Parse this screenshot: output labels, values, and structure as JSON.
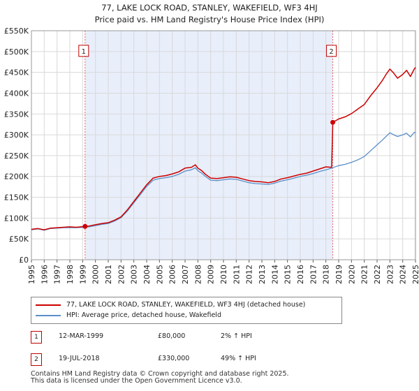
{
  "header": {
    "title_line1": "77, LAKE LOCK ROAD, STANLEY, WAKEFIELD, WF3 4HJ",
    "title_line2": "Price paid vs. HM Land Registry's House Price Index (HPI)"
  },
  "chart_data": {
    "type": "line",
    "title": "77, LAKE LOCK ROAD, STANLEY, WAKEFIELD, WF3 4HJ — Price paid vs. HM Land Registry's House Price Index (HPI)",
    "xlabel": "",
    "ylabel": "",
    "xlim": [
      1995,
      2025
    ],
    "ylim": [
      0,
      550000
    ],
    "y_ticks": [
      0,
      50000,
      100000,
      150000,
      200000,
      250000,
      300000,
      350000,
      400000,
      450000,
      500000,
      550000
    ],
    "y_tick_labels": [
      "£0",
      "£50K",
      "£100K",
      "£150K",
      "£200K",
      "£250K",
      "£300K",
      "£350K",
      "£400K",
      "£450K",
      "£500K",
      "£550K"
    ],
    "x_ticks": [
      1995,
      1996,
      1997,
      1998,
      1999,
      2000,
      2001,
      2002,
      2003,
      2004,
      2005,
      2006,
      2007,
      2008,
      2009,
      2010,
      2011,
      2012,
      2013,
      2014,
      2015,
      2016,
      2017,
      2018,
      2019,
      2020,
      2021,
      2022,
      2023,
      2024,
      2025
    ],
    "x_tick_labels": [
      "1995",
      "1996",
      "1997",
      "1998",
      "1999",
      "2000",
      "2001",
      "2002",
      "2003",
      "2004",
      "2005",
      "2006",
      "2007",
      "2008",
      "2009",
      "2010",
      "2011",
      "2012",
      "2013",
      "2014",
      "2015",
      "2016",
      "2017",
      "2018",
      "2019",
      "2020",
      "2021",
      "2022",
      "2023",
      "2024",
      "2025"
    ],
    "grid": true,
    "shaded_period": [
      1999.19,
      2018.54
    ],
    "series": [
      {
        "name": "77, LAKE LOCK ROAD, STANLEY, WAKEFIELD, WF3 4HJ (detached house)",
        "color": "#cc0000",
        "x": [
          1995,
          1995.5,
          1996,
          1996.5,
          1997,
          1997.5,
          1998,
          1998.5,
          1999.19,
          1999.5,
          2000,
          2000.5,
          2001,
          2001.5,
          2002,
          2002.5,
          2003,
          2003.5,
          2004,
          2004.5,
          2005,
          2005.5,
          2006,
          2006.5,
          2007,
          2007.5,
          2007.8,
          2008,
          2008.3,
          2008.6,
          2009,
          2009.5,
          2010,
          2010.5,
          2011,
          2011.5,
          2012,
          2012.5,
          2013,
          2013.5,
          2014,
          2014.5,
          2015,
          2015.5,
          2016,
          2016.5,
          2017,
          2017.5,
          2018,
          2018.45,
          2018.54,
          2019,
          2019.5,
          2020,
          2020.5,
          2021,
          2021.5,
          2022,
          2022.4,
          2022.7,
          2023,
          2023.3,
          2023.6,
          2024,
          2024.3,
          2024.6,
          2024.9,
          2025
        ],
        "y": [
          73000,
          75000,
          72000,
          76000,
          77000,
          78000,
          79000,
          78000,
          80000,
          81000,
          84000,
          87000,
          89000,
          95000,
          103000,
          120000,
          140000,
          160000,
          180000,
          196000,
          200000,
          202000,
          206000,
          211000,
          220000,
          222000,
          228000,
          220000,
          214000,
          205000,
          196000,
          195000,
          197000,
          199000,
          198000,
          194000,
          190000,
          188000,
          187000,
          185000,
          188000,
          194000,
          197000,
          201000,
          205000,
          208000,
          213000,
          218000,
          223000,
          222000,
          330000,
          338000,
          343000,
          351000,
          362000,
          373000,
          394000,
          413000,
          430000,
          445000,
          458000,
          448000,
          436000,
          445000,
          455000,
          440000,
          458000,
          462000
        ]
      },
      {
        "name": "HPI: Average price, detached house, Wakefield",
        "color": "#5b8fc7",
        "x": [
          1995,
          1995.5,
          1996,
          1996.5,
          1997,
          1997.5,
          1998,
          1998.5,
          1999.19,
          1999.5,
          2000,
          2000.5,
          2001,
          2001.5,
          2002,
          2002.5,
          2003,
          2003.5,
          2004,
          2004.5,
          2005,
          2005.5,
          2006,
          2006.5,
          2007,
          2007.5,
          2007.8,
          2008,
          2008.3,
          2008.6,
          2009,
          2009.5,
          2010,
          2010.5,
          2011,
          2011.5,
          2012,
          2012.5,
          2013,
          2013.5,
          2014,
          2014.5,
          2015,
          2015.5,
          2016,
          2016.5,
          2017,
          2017.5,
          2018,
          2018.54,
          2019,
          2019.5,
          2020,
          2020.5,
          2021,
          2021.5,
          2022,
          2022.4,
          2022.7,
          2023,
          2023.3,
          2023.6,
          2024,
          2024.3,
          2024.6,
          2024.9,
          2025
        ],
        "y": [
          72000,
          74000,
          71000,
          75000,
          76000,
          77000,
          77000,
          77000,
          78000,
          79000,
          82000,
          85000,
          87000,
          93000,
          101000,
          117000,
          137000,
          156000,
          176000,
          191000,
          195000,
          197000,
          200000,
          205000,
          213000,
          216000,
          221000,
          214000,
          208000,
          200000,
          191000,
          190000,
          192000,
          194000,
          193000,
          189000,
          185000,
          183000,
          182000,
          181000,
          184000,
          189000,
          192000,
          196000,
          200000,
          203000,
          207000,
          212000,
          216000,
          221000,
          226000,
          229000,
          234000,
          240000,
          248000,
          262000,
          276000,
          287000,
          296000,
          305000,
          300000,
          296000,
          300000,
          304000,
          295000,
          306000,
          305000
        ]
      }
    ],
    "sales_markers": [
      {
        "label": "1",
        "x": 1999.19,
        "y": 80000
      },
      {
        "label": "2",
        "x": 2018.54,
        "y": 330000
      }
    ]
  },
  "legend": {
    "property_label": "77, LAKE LOCK ROAD, STANLEY, WAKEFIELD, WF3 4HJ (detached house)",
    "property_color": "#cc0000",
    "hpi_label": "HPI: Average price, detached house, Wakefield",
    "hpi_color": "#5b8fc7"
  },
  "sales": [
    {
      "num": "1",
      "date": "12-MAR-1999",
      "price": "£80,000",
      "hpi": "2% ↑ HPI"
    },
    {
      "num": "2",
      "date": "19-JUL-2018",
      "price": "£330,000",
      "hpi": "49% ↑ HPI"
    }
  ],
  "footer": {
    "line1": "Contains HM Land Registry data © Crown copyright and database right 2025.",
    "line2": "This data is licensed under the Open Government Licence v3.0."
  }
}
